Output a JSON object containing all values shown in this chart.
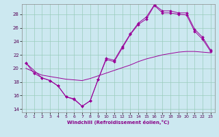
{
  "xlabel": "Windchill (Refroidissement éolien,°C)",
  "background_color": "#cce8f0",
  "grid_color": "#99ccbb",
  "line_color": "#990099",
  "xlim": [
    -0.5,
    23.5
  ],
  "ylim": [
    13.5,
    29.5
  ],
  "yticks": [
    14,
    16,
    18,
    20,
    22,
    24,
    26,
    28
  ],
  "xticks": [
    0,
    1,
    2,
    3,
    4,
    5,
    6,
    7,
    8,
    9,
    10,
    11,
    12,
    13,
    14,
    15,
    16,
    17,
    18,
    19,
    20,
    21,
    22,
    23
  ],
  "line1_x": [
    0,
    1,
    2,
    3,
    4,
    5,
    6,
    7,
    8,
    9,
    10,
    11,
    12,
    13,
    14,
    15,
    16,
    17,
    18,
    19,
    20,
    21,
    22,
    23
  ],
  "line1_y": [
    20.8,
    19.3,
    18.6,
    18.2,
    17.4,
    15.8,
    15.4,
    14.4,
    15.2,
    18.4,
    21.3,
    21.0,
    23.0,
    25.0,
    26.5,
    27.3,
    29.3,
    28.2,
    28.2,
    28.0,
    27.9,
    25.5,
    24.3,
    22.5
  ],
  "line2_x": [
    0,
    1,
    2,
    3,
    4,
    5,
    6,
    7,
    8,
    9,
    10,
    11,
    12,
    13,
    14,
    15,
    16,
    17,
    18,
    19,
    20,
    21,
    22,
    23
  ],
  "line2_y": [
    20.0,
    19.5,
    19.0,
    18.8,
    18.6,
    18.4,
    18.3,
    18.2,
    18.5,
    18.9,
    19.3,
    19.7,
    20.1,
    20.5,
    21.0,
    21.4,
    21.7,
    22.0,
    22.2,
    22.4,
    22.5,
    22.5,
    22.4,
    22.3
  ],
  "line3_x": [
    0,
    2,
    3,
    4,
    5,
    6,
    7,
    8,
    9,
    10,
    11,
    12,
    13,
    14,
    15,
    16,
    17,
    18,
    19,
    20,
    21,
    22,
    23
  ],
  "line3_y": [
    20.8,
    18.6,
    18.2,
    17.4,
    15.8,
    15.5,
    14.4,
    15.2,
    18.4,
    21.5,
    21.2,
    23.2,
    25.1,
    26.7,
    27.6,
    29.4,
    28.5,
    28.5,
    28.2,
    28.2,
    25.8,
    24.6,
    22.7
  ]
}
